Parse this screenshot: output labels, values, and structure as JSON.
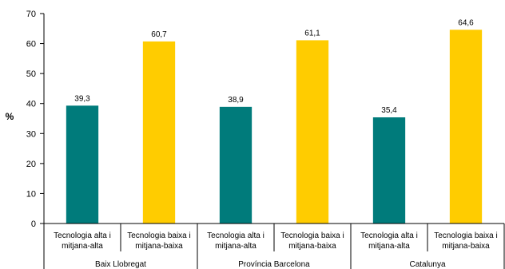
{
  "chart_data": {
    "type": "bar",
    "ylabel": "%",
    "ylim": [
      0,
      70
    ],
    "yticks": [
      0,
      10,
      20,
      30,
      40,
      50,
      60,
      70
    ],
    "grid": false,
    "legend": "none",
    "colors": {
      "alta": "#007b7b",
      "baixa": "#ffcc00"
    },
    "groups": [
      {
        "name": "Baix Llobregat",
        "bars": [
          {
            "label": [
              "Tecnologia alta i",
              "mitjana-alta"
            ],
            "value": 39.3,
            "value_label": "39,3",
            "series": "alta"
          },
          {
            "label": [
              "Tecnologia baixa i",
              "mitjana-baixa"
            ],
            "value": 60.7,
            "value_label": "60,7",
            "series": "baixa"
          }
        ]
      },
      {
        "name": "Província Barcelona",
        "bars": [
          {
            "label": [
              "Tecnologia alta i",
              "mitjana-alta"
            ],
            "value": 38.9,
            "value_label": "38,9",
            "series": "alta"
          },
          {
            "label": [
              "Tecnologia baixa i",
              "mitjana-baixa"
            ],
            "value": 61.1,
            "value_label": "61,1",
            "series": "baixa"
          }
        ]
      },
      {
        "name": "Catalunya",
        "bars": [
          {
            "label": [
              "Tecnologia alta i",
              "mitjana-alta"
            ],
            "value": 35.4,
            "value_label": "35,4",
            "series": "alta"
          },
          {
            "label": [
              "Tecnologia baixa i",
              "mitjana-baixa"
            ],
            "value": 64.6,
            "value_label": "64,6",
            "series": "baixa"
          }
        ]
      }
    ]
  }
}
